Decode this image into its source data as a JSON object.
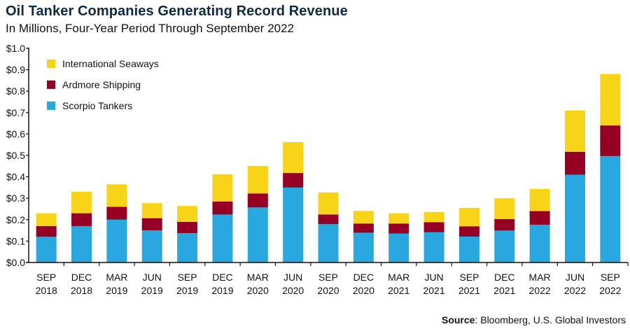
{
  "chart_data": {
    "type": "bar",
    "stacked": true,
    "title": "Oil Tanker Companies Generating Record Revenue",
    "subtitle": "In Millions, Four-Year Period Through September 2022",
    "xlabel": "",
    "ylabel": "",
    "ylim": [
      0,
      1.0
    ],
    "yticks": [
      0,
      0.1,
      0.2,
      0.3,
      0.4,
      0.5,
      0.6,
      0.7,
      0.8,
      0.9,
      1.0
    ],
    "ytick_labels": [
      "$0.0",
      "$0.1",
      "$0.2",
      "$0.3",
      "$0.4",
      "$0.5",
      "$0.6",
      "$0.7",
      "$0.8",
      "$0.9",
      "$1.0"
    ],
    "grid": false,
    "legend_position": "top-left",
    "categories": [
      {
        "month": "SEP",
        "year": "2018"
      },
      {
        "month": "DEC",
        "year": "2018"
      },
      {
        "month": "MAR",
        "year": "2019"
      },
      {
        "month": "JUN",
        "year": "2019"
      },
      {
        "month": "SEP",
        "year": "2019"
      },
      {
        "month": "DEC",
        "year": "2019"
      },
      {
        "month": "MAR",
        "year": "2020"
      },
      {
        "month": "JUN",
        "year": "2020"
      },
      {
        "month": "SEP",
        "year": "2020"
      },
      {
        "month": "DEC",
        "year": "2020"
      },
      {
        "month": "MAR",
        "year": "2021"
      },
      {
        "month": "JUN",
        "year": "2021"
      },
      {
        "month": "SEP",
        "year": "2021"
      },
      {
        "month": "DEC",
        "year": "2021"
      },
      {
        "month": "MAR",
        "year": "2022"
      },
      {
        "month": "JUN",
        "year": "2022"
      },
      {
        "month": "SEP",
        "year": "2022"
      }
    ],
    "series": [
      {
        "name": "Scorpio Tankers",
        "color": "#29a8e0",
        "values": [
          0.12,
          0.17,
          0.2,
          0.15,
          0.137,
          0.224,
          0.257,
          0.35,
          0.179,
          0.139,
          0.135,
          0.141,
          0.121,
          0.149,
          0.176,
          0.41,
          0.497
        ]
      },
      {
        "name": "Ardmore Shipping",
        "color": "#960022",
        "values": [
          0.05,
          0.06,
          0.06,
          0.057,
          0.053,
          0.061,
          0.065,
          0.068,
          0.045,
          0.043,
          0.047,
          0.047,
          0.048,
          0.054,
          0.064,
          0.107,
          0.143
        ]
      },
      {
        "name": "International Seaways",
        "color": "#f7d417",
        "values": [
          0.06,
          0.1,
          0.105,
          0.07,
          0.074,
          0.127,
          0.129,
          0.144,
          0.103,
          0.059,
          0.048,
          0.048,
          0.086,
          0.097,
          0.103,
          0.192,
          0.24
        ]
      }
    ],
    "legend_order": [
      "International Seaways",
      "Ardmore Shipping",
      "Scorpio Tankers"
    ],
    "source_label": "Source",
    "source_text": ": Bloomberg, U.S. Global Investors"
  }
}
